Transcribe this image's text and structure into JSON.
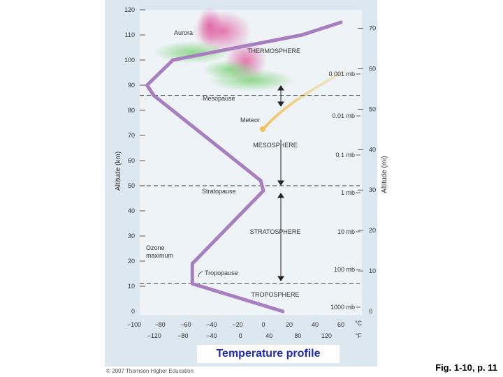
{
  "colors": {
    "panel_bg": "#dde7ef",
    "plot_bg": "#eef3f7",
    "profile_line": "#a77fc0",
    "meteor": "#e8b04a",
    "aurora_pink": "#e05fa0",
    "aurora_green": "#7ed37a",
    "axis_text": "#333333",
    "overlay_text": "#1e2bb8"
  },
  "icons": {
    "arrow_icon": "double-headed-arrow",
    "meteor_icon": "meteor-streak",
    "aurora_icon": "aurora-glow"
  },
  "axes": {
    "left_title": "Altitude (km)",
    "right_title": "Altitude (mi)",
    "km_ticks": [
      "0",
      "10",
      "20",
      "30",
      "40",
      "50",
      "60",
      "70",
      "80",
      "90",
      "100",
      "110",
      "120"
    ],
    "mi_ticks": [
      "0",
      "10",
      "20",
      "30",
      "40",
      "50",
      "60",
      "70"
    ],
    "celsius_ticks": [
      "−100",
      "−80",
      "−60",
      "−40",
      "−20",
      "0",
      "20",
      "40",
      "60"
    ],
    "celsius_unit": "°C",
    "fahrenheit_ticks": [
      "−120",
      "−80",
      "−40",
      "0",
      "40",
      "80",
      "120"
    ],
    "fahrenheit_unit": "°F"
  },
  "layers": {
    "thermosphere": "THERMOSPHERE",
    "mesosphere": "MESOSPHERE",
    "stratosphere": "STRATOSPHERE",
    "troposphere": "TROPOSPHERE"
  },
  "boundaries": {
    "mesopause": "Mesopause",
    "stratopause": "Stratopause",
    "tropopause": "Tropopause"
  },
  "annotations": {
    "aurora": "Aurora",
    "meteor": "Meteor",
    "ozone_line1": "Ozone",
    "ozone_line2": "maximum"
  },
  "pressure_labels": [
    "0.001 mb",
    "0.01 mb",
    "0.1 mb",
    "1 mb",
    "10 mb",
    "100 mb",
    "1000 mb"
  ],
  "profile": {
    "temperature_c": [
      15,
      -55,
      -55,
      0,
      -2,
      -85,
      -90,
      -70,
      30,
      60
    ],
    "altitude_km": [
      0,
      11,
      19,
      48,
      52,
      86,
      90,
      100,
      110,
      115
    ]
  },
  "boundary_altitudes_km": [
    11,
    50,
    86
  ],
  "overlay_caption": "Temperature profile",
  "copyright": "© 2007 Thomson Higher Education",
  "figure_ref": "Fig. 1-10, p. 11"
}
